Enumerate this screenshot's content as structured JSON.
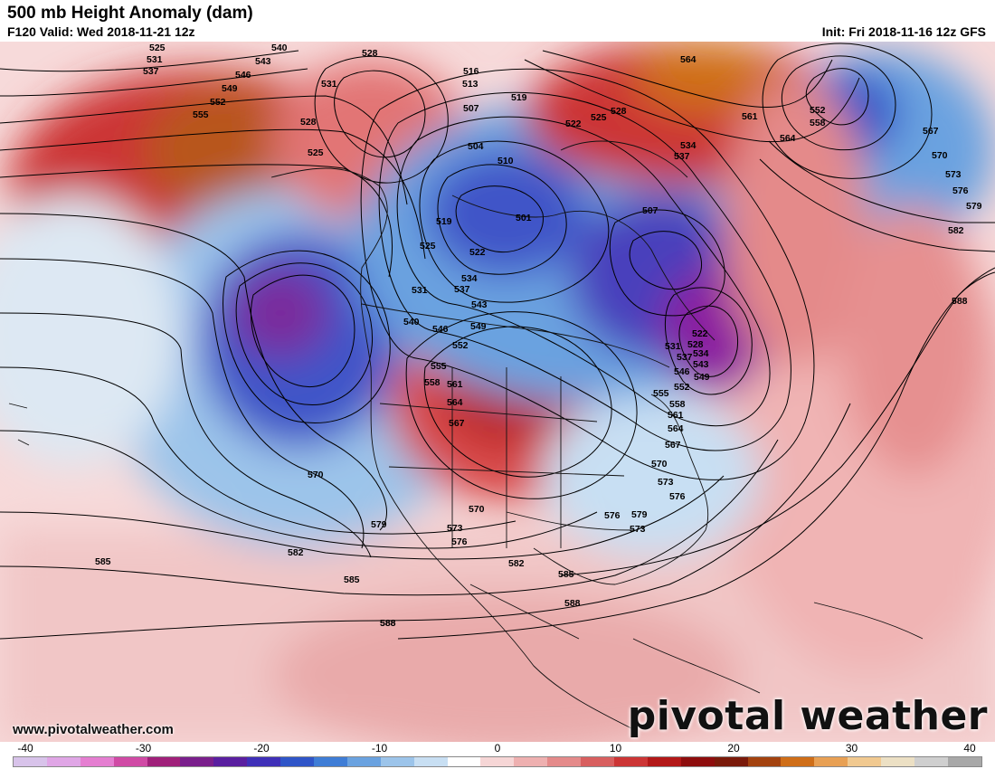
{
  "header": {
    "title": "500 mb Height Anomaly (dam)",
    "valid": "F120 Valid: Wed 2018-11-21 12z",
    "init": "Init: Fri 2018-11-16 12z GFS"
  },
  "footer": {
    "website": "www.pivotalweather.com",
    "brand": "pivotal weather"
  },
  "colorbar": {
    "ticks": [
      "-40",
      "-30",
      "-20",
      "-10",
      "0",
      "10",
      "20",
      "30",
      "40"
    ],
    "colors": [
      "#d8c3ea",
      "#e0a6e6",
      "#e57ed1",
      "#d04aa5",
      "#a0207a",
      "#7a1f8c",
      "#5a1fa0",
      "#3f2fb8",
      "#2f55c8",
      "#3f7dd6",
      "#6aa2e0",
      "#9cc4ea",
      "#c8dff3",
      "#ffffff",
      "#f6d6d6",
      "#eeb0b0",
      "#e48a8a",
      "#d85f5f",
      "#cc3535",
      "#b31818",
      "#8e0d0d",
      "#7a1a0a",
      "#a3420f",
      "#cf6e18",
      "#e8a054",
      "#f1c990",
      "#ece0c4",
      "#cfcfcf",
      "#a8a8a8"
    ]
  },
  "contour_labels": [
    "525",
    "531",
    "537",
    "540",
    "543",
    "546",
    "549",
    "552",
    "555",
    "528",
    "531",
    "528",
    "525",
    "516",
    "513",
    "507",
    "504",
    "501",
    "510",
    "519",
    "522",
    "525",
    "528",
    "564",
    "561",
    "552",
    "558",
    "564",
    "567",
    "570",
    "573",
    "576",
    "579",
    "582",
    "588",
    "534",
    "537",
    "519",
    "522",
    "525",
    "531",
    "534",
    "537",
    "540",
    "543",
    "546",
    "549",
    "552",
    "555",
    "558",
    "561",
    "564",
    "567",
    "570",
    "573",
    "576",
    "579",
    "582",
    "585",
    "588",
    "507",
    "522",
    "528",
    "531",
    "534",
    "537",
    "543",
    "546",
    "549",
    "552",
    "555",
    "558",
    "561",
    "564",
    "567",
    "570",
    "573",
    "576",
    "579",
    "570",
    "573",
    "576",
    "582",
    "585",
    "585",
    "588",
    "588"
  ]
}
